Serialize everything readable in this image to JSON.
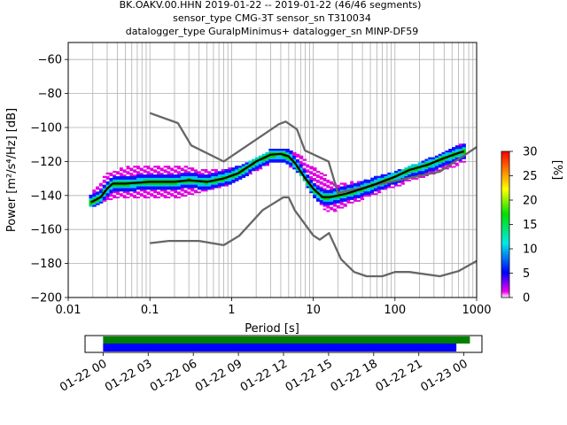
{
  "title_lines": [
    "BK.OAKV.00.HHN   2019-01-22 -- 2019-01-22  (46/46 segments)",
    "sensor_type CMG-3T sensor_sn T310034",
    "datalogger_type GuralpMinimus+ datalogger_sn MINP-DF59"
  ],
  "chart_data": [
    {
      "type": "heatmap",
      "subtype": "probabilistic-power-spectral-density",
      "xlabel": "Period [s]",
      "ylabel": "Power [m²/s⁴/Hz] [dB]",
      "x_scale": "log",
      "xlim": [
        0.01,
        1000
      ],
      "ylim": [
        -200,
        -50
      ],
      "x_ticks": [
        {
          "value": 0.01,
          "label": "0.01"
        },
        {
          "value": 0.1,
          "label": "0.1"
        },
        {
          "value": 1,
          "label": "1"
        },
        {
          "value": 10,
          "label": "10"
        },
        {
          "value": 100,
          "label": "100"
        },
        {
          "value": 1000,
          "label": "1000"
        }
      ],
      "y_ticks": [
        {
          "value": -60,
          "label": "−60"
        },
        {
          "value": -80,
          "label": "−80"
        },
        {
          "value": -100,
          "label": "−100"
        },
        {
          "value": -120,
          "label": "−120"
        },
        {
          "value": -140,
          "label": "−140"
        },
        {
          "value": -160,
          "label": "−160"
        },
        {
          "value": -180,
          "label": "−180"
        },
        {
          "value": -200,
          "label": "−200"
        }
      ],
      "grid": true,
      "colorbar": {
        "label": "[%]",
        "range": [
          0,
          30
        ],
        "ticks": [
          {
            "value": 0,
            "label": "0"
          },
          {
            "value": 5,
            "label": "5"
          },
          {
            "value": 10,
            "label": "10"
          },
          {
            "value": 15,
            "label": "15"
          },
          {
            "value": 20,
            "label": "20"
          },
          {
            "value": 25,
            "label": "25"
          },
          {
            "value": 30,
            "label": "30"
          }
        ],
        "colors": [
          "#ffffff",
          "#ee00ee",
          "#0000ff",
          "#00e8e8",
          "#00e000",
          "#ffff00",
          "#ff8000",
          "#ff0000"
        ]
      },
      "series": [
        {
          "role": "new-high-noise-model",
          "color": "#666666",
          "points": [
            [
              0.1,
              -91.5
            ],
            [
              0.22,
              -97.4
            ],
            [
              0.32,
              -110.5
            ],
            [
              0.8,
              -120
            ],
            [
              3.8,
              -98
            ],
            [
              4.6,
              -96.5
            ],
            [
              6.3,
              -101
            ],
            [
              7.9,
              -113.5
            ],
            [
              15.4,
              -120
            ],
            [
              20,
              -138.5
            ],
            [
              354.8,
              -126
            ],
            [
              1000,
              -111.5
            ]
          ]
        },
        {
          "role": "new-low-noise-model",
          "color": "#666666",
          "points": [
            [
              0.1,
              -168
            ],
            [
              0.17,
              -166.7
            ],
            [
              0.4,
              -166.7
            ],
            [
              0.8,
              -169.2
            ],
            [
              1.24,
              -163.7
            ],
            [
              2.4,
              -148.6
            ],
            [
              4.3,
              -141.1
            ],
            [
              5.0,
              -141.1
            ],
            [
              6.0,
              -149
            ],
            [
              10.0,
              -163.5
            ],
            [
              12.0,
              -166
            ],
            [
              15.6,
              -162.1
            ],
            [
              21.9,
              -177.5
            ],
            [
              31.6,
              -185
            ],
            [
              45,
              -187.5
            ],
            [
              70,
              -187.5
            ],
            [
              100,
              -185
            ],
            [
              150,
              -185
            ],
            [
              354.8,
              -187.5
            ],
            [
              600,
              -184.5
            ],
            [
              1000,
              -178.5
            ]
          ]
        },
        {
          "role": "mode",
          "color": "#000000",
          "points": [
            [
              0.019,
              -144
            ],
            [
              0.025,
              -141
            ],
            [
              0.03,
              -136
            ],
            [
              0.035,
              -133
            ],
            [
              0.05,
              -133
            ],
            [
              0.1,
              -132
            ],
            [
              0.2,
              -132
            ],
            [
              0.3,
              -131
            ],
            [
              0.5,
              -132
            ],
            [
              0.8,
              -130
            ],
            [
              1.2,
              -127
            ],
            [
              2,
              -120
            ],
            [
              3,
              -116
            ],
            [
              4,
              -115.5
            ],
            [
              5,
              -117
            ],
            [
              6,
              -121
            ],
            [
              8,
              -130
            ],
            [
              10,
              -136
            ],
            [
              13,
              -141
            ],
            [
              16,
              -141
            ],
            [
              25,
              -139
            ],
            [
              40,
              -136
            ],
            [
              60,
              -133
            ],
            [
              100,
              -129
            ],
            [
              150,
              -125
            ],
            [
              250,
              -122
            ],
            [
              400,
              -118
            ],
            [
              600,
              -115
            ],
            [
              700,
              -114
            ]
          ]
        }
      ],
      "density_band": {
        "lower_dB": [
          [
            0.019,
            -146
          ],
          [
            0.03,
            -142
          ],
          [
            0.05,
            -140
          ],
          [
            0.1,
            -141
          ],
          [
            0.2,
            -141
          ],
          [
            0.4,
            -138
          ],
          [
            0.8,
            -134
          ],
          [
            1.5,
            -128
          ],
          [
            3,
            -120
          ],
          [
            4.5,
            -119
          ],
          [
            7,
            -127
          ],
          [
            10,
            -139
          ],
          [
            15,
            -149
          ],
          [
            20,
            -148
          ],
          [
            40,
            -141
          ],
          [
            100,
            -134
          ],
          [
            300,
            -126
          ],
          [
            700,
            -120
          ]
        ],
        "upper_dB": [
          [
            0.019,
            -140
          ],
          [
            0.03,
            -128
          ],
          [
            0.05,
            -124
          ],
          [
            0.1,
            -123
          ],
          [
            0.2,
            -123
          ],
          [
            0.4,
            -125
          ],
          [
            0.8,
            -126
          ],
          [
            1.5,
            -122
          ],
          [
            3,
            -114
          ],
          [
            4.5,
            -113
          ],
          [
            7,
            -117
          ],
          [
            10,
            -124
          ],
          [
            15,
            -130
          ],
          [
            20,
            -134
          ],
          [
            40,
            -132
          ],
          [
            100,
            -127
          ],
          [
            300,
            -118
          ],
          [
            700,
            -110
          ]
        ]
      }
    },
    {
      "type": "timeline",
      "x_ticks": [
        {
          "value": "01-22 00",
          "label": "01-22 00"
        },
        {
          "value": "01-22 03",
          "label": "01-22 03"
        },
        {
          "value": "01-22 06",
          "label": "01-22 06"
        },
        {
          "value": "01-22 09",
          "label": "01-22 09"
        },
        {
          "value": "01-22 12",
          "label": "01-22 12"
        },
        {
          "value": "01-22 15",
          "label": "01-22 15"
        },
        {
          "value": "01-22 18",
          "label": "01-22 18"
        },
        {
          "value": "01-22 21",
          "label": "01-22 21"
        },
        {
          "value": "01-23 00",
          "label": "01-23 00"
        }
      ],
      "xlim_hours": [
        -1.2,
        25.2
      ],
      "bars": [
        {
          "role": "data-available",
          "color": "#008000",
          "start_hour": 0,
          "end_hour": 24.4
        },
        {
          "role": "psd-segments-used",
          "color": "#0000ff",
          "start_hour": 0,
          "end_hour": 23.5
        }
      ]
    }
  ]
}
